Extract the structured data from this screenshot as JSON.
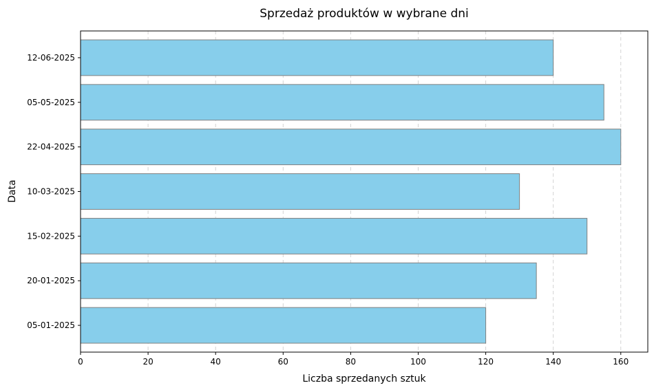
{
  "chart_data": {
    "type": "bar",
    "orientation": "horizontal",
    "title": "Sprzedaż produktów w wybrane dni",
    "xlabel": "Liczba sprzedanych sztuk",
    "ylabel": "Data",
    "categories": [
      "05-01-2025",
      "20-01-2025",
      "15-02-2025",
      "10-03-2025",
      "22-04-2025",
      "05-05-2025",
      "12-06-2025"
    ],
    "values": [
      120,
      135,
      150,
      130,
      160,
      155,
      140
    ],
    "xlim": [
      0,
      168
    ],
    "xticks": [
      0,
      20,
      40,
      60,
      80,
      100,
      120,
      140,
      160
    ],
    "grid": "vertical dashed",
    "bar_color": "#87CEEB",
    "bar_edge_color": "#808080"
  }
}
